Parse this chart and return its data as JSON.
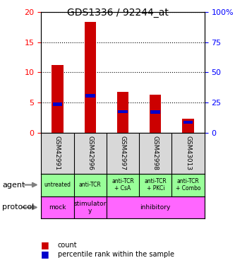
{
  "title": "GDS1336 / 92244_at",
  "samples": [
    "GSM42991",
    "GSM42996",
    "GSM42997",
    "GSM42998",
    "GSM43013"
  ],
  "count_values": [
    11.2,
    18.4,
    6.7,
    6.3,
    2.3
  ],
  "percentile_values": [
    4.7,
    6.1,
    3.5,
    3.4,
    1.7
  ],
  "left_ylim": [
    0,
    20
  ],
  "right_ylim": [
    0,
    100
  ],
  "left_yticks": [
    0,
    5,
    10,
    15,
    20
  ],
  "right_yticks": [
    0,
    25,
    50,
    75,
    100
  ],
  "right_yticklabels": [
    "0",
    "25",
    "50",
    "75",
    "100%"
  ],
  "agent_labels": [
    "untreated",
    "anti-TCR",
    "anti-TCR\n+ CsA",
    "anti-TCR\n+ PKCi",
    "anti-TCR\n+ Combo"
  ],
  "protocol_data": [
    {
      "label": "mock",
      "start": 0,
      "end": 1,
      "color": "#ff66ff"
    },
    {
      "label": "stimulator\ny",
      "start": 1,
      "end": 2,
      "color": "#ff66ff"
    },
    {
      "label": "inhibitory",
      "start": 2,
      "end": 5,
      "color": "#ff66ff"
    }
  ],
  "bar_color_red": "#cc0000",
  "bar_color_blue": "#0000cc",
  "bar_width": 0.35,
  "bg_color": "#d8d8d8",
  "agent_color": "#99ff99",
  "plot_bg": "white",
  "title_fontsize": 10,
  "tick_fontsize": 8,
  "label_fontsize": 7
}
